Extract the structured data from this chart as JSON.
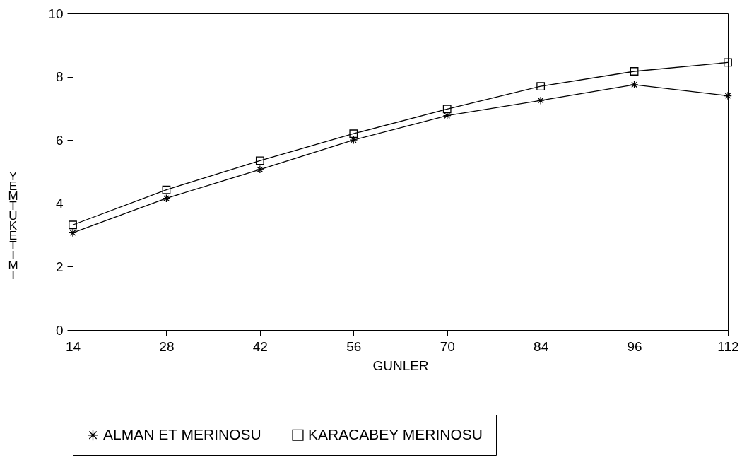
{
  "chart_data": {
    "type": "line",
    "xlabel": "GUNLER",
    "ylabel": "YEM TUKETIMI",
    "categories": [
      "14",
      "28",
      "42",
      "56",
      "70",
      "84",
      "96",
      "112"
    ],
    "ylim": [
      0,
      10
    ],
    "yticks": [
      0,
      2,
      4,
      6,
      8,
      10
    ],
    "grid": false,
    "legend": "bottom",
    "line_style": "solid",
    "series": [
      {
        "name": "ALMAN ET MERINOSU",
        "color": "#000000",
        "marker": "cross",
        "values": [
          3.07,
          4.16,
          5.07,
          6.0,
          6.77,
          7.25,
          7.75,
          7.4
        ]
      },
      {
        "name": "KARACABEY MERINOSU",
        "color": "#000000",
        "marker": "square",
        "values": [
          3.32,
          4.43,
          5.35,
          6.2,
          6.98,
          7.7,
          8.17,
          8.45
        ]
      }
    ]
  }
}
